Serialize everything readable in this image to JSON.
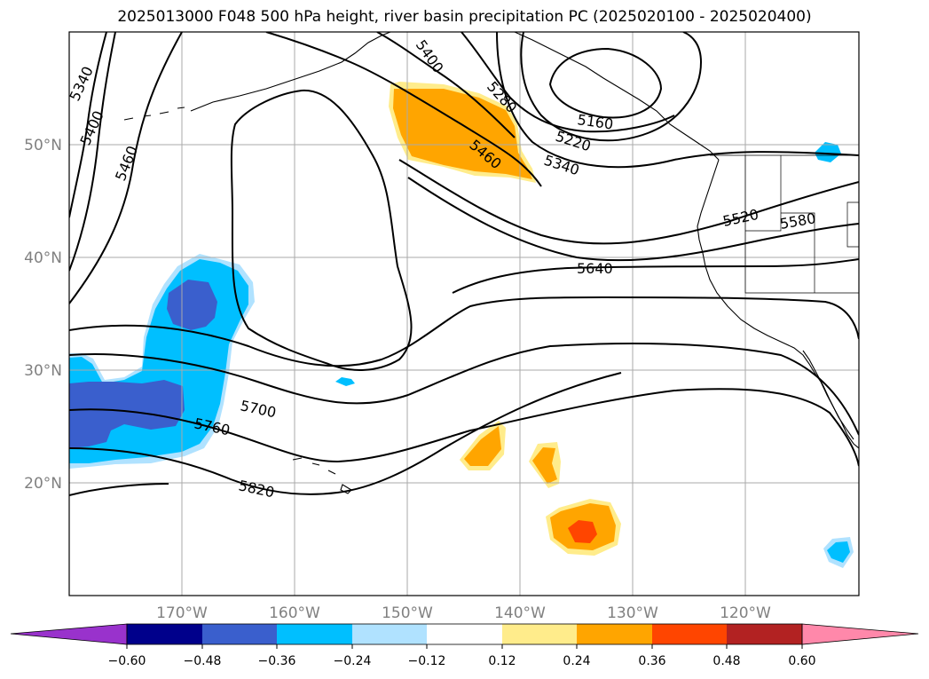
{
  "title": "2025013000 F048 500 hPa height, river basin precipitation PC (2025020100 - 2025020400)",
  "map": {
    "lon_range": [
      -180,
      -110
    ],
    "lat_range": [
      10,
      60
    ],
    "lat_ticks": [
      {
        "lat": 50,
        "label": "50°N"
      },
      {
        "lat": 40,
        "label": "40°N"
      },
      {
        "lat": 30,
        "label": "30°N"
      },
      {
        "lat": 20,
        "label": "20°N"
      }
    ],
    "lon_ticks": [
      {
        "lon": -170,
        "label": "170°W"
      },
      {
        "lon": -160,
        "label": "160°W"
      },
      {
        "lon": -150,
        "label": "150°W"
      },
      {
        "lon": -140,
        "label": "140°W"
      },
      {
        "lon": -130,
        "label": "130°W"
      },
      {
        "lon": -120,
        "label": "120°W"
      }
    ],
    "grid": true
  },
  "contours": {
    "variable": "500 hPa height",
    "labels": [
      "5340",
      "5400",
      "5460",
      "5400",
      "5280",
      "5160",
      "5220",
      "5340",
      "5460",
      "5520",
      "5580",
      "5640",
      "5700",
      "5760",
      "5820"
    ]
  },
  "colorbar": {
    "colors": [
      "#9932cc",
      "#00008b",
      "#3a5fcd",
      "#00bfff",
      "#b0e2ff",
      "#ffffff",
      "#ffec8b",
      "#ffa500",
      "#ff4500",
      "#b22222",
      "#ff88aa"
    ],
    "ticks": [
      "−0.60",
      "−0.48",
      "−0.36",
      "−0.24",
      "−0.12",
      "0.12",
      "0.24",
      "0.36",
      "0.48",
      "0.60"
    ]
  }
}
